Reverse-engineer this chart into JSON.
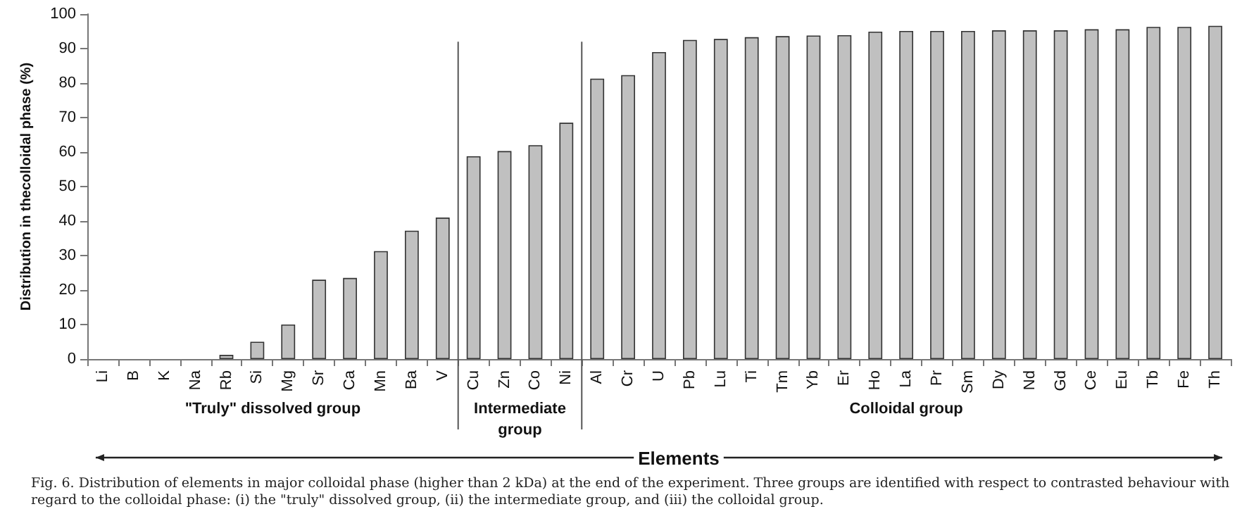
{
  "chart_data": {
    "type": "bar",
    "ylabel": "Distribution in thecolloidal phase (%)",
    "xlabel": "Elements",
    "categories": [
      "Li",
      "B",
      "K",
      "Na",
      "Rb",
      "Si",
      "Mg",
      "Sr",
      "Ca",
      "Mn",
      "Ba",
      "V",
      "Cu",
      "Zn",
      "Co",
      "Ni",
      "Al",
      "Cr",
      "U",
      "Pb",
      "Lu",
      "Ti",
      "Tm",
      "Yb",
      "Er",
      "Ho",
      "La",
      "Pr",
      "Sm",
      "Dy",
      "Nd",
      "Gd",
      "Ce",
      "Eu",
      "Tb",
      "Fe",
      "Th"
    ],
    "values": [
      0,
      0,
      0,
      0,
      1.2,
      5,
      10,
      23,
      23.5,
      31.3,
      37.2,
      41,
      58.8,
      60.3,
      62,
      68.5,
      81.3,
      82.3,
      89,
      92.5,
      92.8,
      93.3,
      93.6,
      93.8,
      93.9,
      94.9,
      95.1,
      95.1,
      95.1,
      95.3,
      95.3,
      95.3,
      95.6,
      95.6,
      96.3,
      96.3,
      96.6
    ],
    "color": "#c0c0c0",
    "ylim": [
      0,
      100
    ],
    "yticks": [
      0,
      10,
      20,
      30,
      40,
      50,
      60,
      70,
      80,
      90,
      100
    ],
    "grid": false,
    "annotations": [
      "\"Truly\" dissolved group",
      "Intermediate\ngroup",
      "Colloidal group",
      "Fig. 6. Distribution of elements in major colloidal phase (higher than 2 kDa) at the end of the experiment. Three groups are identified with respect to contrasted behaviour with regard to the colloidal phase: (i) the \"truly\" dissolved group, (ii) the intermediate group, and (iii) the colloidal group."
    ]
  }
}
